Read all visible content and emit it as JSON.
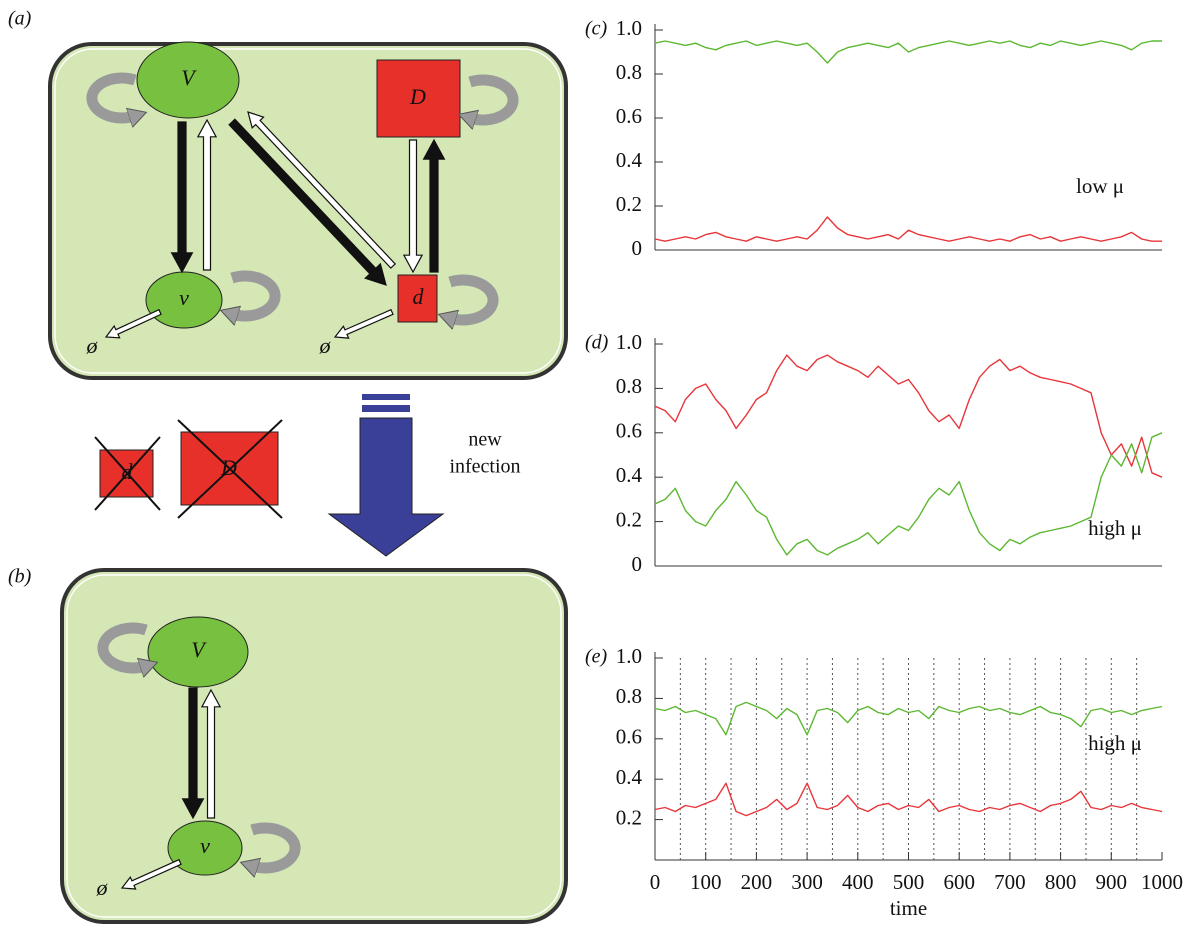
{
  "diagram": {
    "a": {
      "label": "(a)",
      "nodes": [
        "V",
        "D",
        "v",
        "d"
      ],
      "sinks": [
        "ø",
        "ø"
      ]
    },
    "removed": [
      "d",
      "D"
    ],
    "arrow_label": [
      "new",
      "infection"
    ],
    "b": {
      "label": "(b)",
      "nodes": [
        "V",
        "v"
      ],
      "sinks": [
        "ø"
      ]
    }
  },
  "chart_data": [
    {
      "type": "line",
      "label": "(c)",
      "annotation": "low μ",
      "x": [
        0,
        20,
        40,
        60,
        80,
        100,
        120,
        140,
        160,
        180,
        200,
        220,
        240,
        260,
        280,
        300,
        320,
        340,
        360,
        380,
        400,
        420,
        440,
        460,
        480,
        500,
        520,
        540,
        560,
        580,
        600,
        620,
        640,
        660,
        680,
        700,
        720,
        740,
        760,
        780,
        800,
        820,
        840,
        860,
        880,
        900,
        920,
        940,
        960,
        980,
        1000
      ],
      "xlim": [
        0,
        1000
      ],
      "ylim": [
        0,
        1
      ],
      "yticks": [
        0,
        0.2,
        0.4,
        0.6,
        0.8,
        {
          "value": 1,
          "label": "1.0"
        }
      ],
      "series": [
        {
          "color": "#5cb832",
          "values": [
            0.94,
            0.95,
            0.94,
            0.93,
            0.94,
            0.92,
            0.91,
            0.93,
            0.94,
            0.95,
            0.93,
            0.94,
            0.95,
            0.94,
            0.93,
            0.94,
            0.9,
            0.85,
            0.9,
            0.92,
            0.93,
            0.94,
            0.93,
            0.92,
            0.94,
            0.9,
            0.92,
            0.93,
            0.94,
            0.95,
            0.94,
            0.93,
            0.94,
            0.95,
            0.94,
            0.95,
            0.93,
            0.92,
            0.94,
            0.93,
            0.95,
            0.94,
            0.93,
            0.94,
            0.95,
            0.94,
            0.93,
            0.91,
            0.94,
            0.95,
            0.95
          ]
        },
        {
          "color": "#e8353a",
          "values": [
            0.05,
            0.04,
            0.05,
            0.06,
            0.05,
            0.07,
            0.08,
            0.06,
            0.05,
            0.04,
            0.06,
            0.05,
            0.04,
            0.05,
            0.06,
            0.05,
            0.09,
            0.15,
            0.1,
            0.07,
            0.06,
            0.05,
            0.06,
            0.07,
            0.05,
            0.09,
            0.07,
            0.06,
            0.05,
            0.04,
            0.05,
            0.06,
            0.05,
            0.04,
            0.05,
            0.04,
            0.06,
            0.07,
            0.05,
            0.06,
            0.04,
            0.05,
            0.06,
            0.05,
            0.04,
            0.05,
            0.06,
            0.08,
            0.05,
            0.04,
            0.04
          ]
        }
      ]
    },
    {
      "type": "line",
      "label": "(d)",
      "annotation": "high μ",
      "x": [
        0,
        20,
        40,
        60,
        80,
        100,
        120,
        140,
        160,
        180,
        200,
        220,
        240,
        260,
        280,
        300,
        320,
        340,
        360,
        380,
        400,
        420,
        440,
        460,
        480,
        500,
        520,
        540,
        560,
        580,
        600,
        620,
        640,
        660,
        680,
        700,
        720,
        740,
        760,
        780,
        800,
        820,
        840,
        860,
        880,
        900,
        920,
        940,
        960,
        980,
        1000
      ],
      "xlim": [
        0,
        1000
      ],
      "ylim": [
        0,
        1
      ],
      "yticks": [
        0,
        0.2,
        0.4,
        0.6,
        0.8,
        {
          "value": 1,
          "label": "1.0"
        }
      ],
      "series": [
        {
          "color": "#e8353a",
          "values": [
            0.72,
            0.7,
            0.65,
            0.75,
            0.8,
            0.82,
            0.75,
            0.7,
            0.62,
            0.68,
            0.75,
            0.78,
            0.88,
            0.95,
            0.9,
            0.88,
            0.93,
            0.95,
            0.92,
            0.9,
            0.88,
            0.85,
            0.9,
            0.86,
            0.82,
            0.84,
            0.78,
            0.7,
            0.65,
            0.68,
            0.62,
            0.75,
            0.85,
            0.9,
            0.93,
            0.88,
            0.9,
            0.87,
            0.85,
            0.84,
            0.83,
            0.82,
            0.8,
            0.78,
            0.6,
            0.5,
            0.55,
            0.45,
            0.58,
            0.42,
            0.4
          ]
        },
        {
          "color": "#5cb832",
          "values": [
            0.28,
            0.3,
            0.35,
            0.25,
            0.2,
            0.18,
            0.25,
            0.3,
            0.38,
            0.32,
            0.25,
            0.22,
            0.12,
            0.05,
            0.1,
            0.12,
            0.07,
            0.05,
            0.08,
            0.1,
            0.12,
            0.15,
            0.1,
            0.14,
            0.18,
            0.16,
            0.22,
            0.3,
            0.35,
            0.32,
            0.38,
            0.25,
            0.15,
            0.1,
            0.07,
            0.12,
            0.1,
            0.13,
            0.15,
            0.16,
            0.17,
            0.18,
            0.2,
            0.22,
            0.4,
            0.5,
            0.45,
            0.55,
            0.42,
            0.58,
            0.6
          ]
        }
      ]
    },
    {
      "type": "line",
      "label": "(e)",
      "annotation": "high μ",
      "xlabel": "time",
      "x": [
        0,
        20,
        40,
        60,
        80,
        100,
        120,
        140,
        160,
        180,
        200,
        220,
        240,
        260,
        280,
        300,
        320,
        340,
        360,
        380,
        400,
        420,
        440,
        460,
        480,
        500,
        520,
        540,
        560,
        580,
        600,
        620,
        640,
        660,
        680,
        700,
        720,
        740,
        760,
        780,
        800,
        820,
        840,
        860,
        880,
        900,
        920,
        940,
        960,
        980,
        1000
      ],
      "xlim": [
        0,
        1000
      ],
      "ylim": [
        0,
        1
      ],
      "xticks": [
        0,
        100,
        200,
        300,
        400,
        500,
        600,
        700,
        800,
        900,
        1000
      ],
      "yticks": [
        0.2,
        0.4,
        0.6,
        0.8,
        {
          "value": 1,
          "label": "1.0"
        }
      ],
      "vlines": [
        50,
        100,
        150,
        200,
        250,
        300,
        350,
        400,
        450,
        500,
        550,
        600,
        650,
        700,
        750,
        800,
        850,
        900,
        950
      ],
      "series": [
        {
          "color": "#5cb832",
          "values": [
            0.75,
            0.74,
            0.76,
            0.73,
            0.74,
            0.72,
            0.7,
            0.62,
            0.76,
            0.78,
            0.76,
            0.74,
            0.7,
            0.75,
            0.72,
            0.62,
            0.74,
            0.75,
            0.73,
            0.68,
            0.74,
            0.76,
            0.73,
            0.72,
            0.75,
            0.73,
            0.74,
            0.7,
            0.76,
            0.74,
            0.73,
            0.75,
            0.76,
            0.74,
            0.75,
            0.73,
            0.72,
            0.74,
            0.76,
            0.73,
            0.72,
            0.7,
            0.66,
            0.74,
            0.75,
            0.73,
            0.74,
            0.72,
            0.74,
            0.75,
            0.76
          ]
        },
        {
          "color": "#e8353a",
          "values": [
            0.25,
            0.26,
            0.24,
            0.27,
            0.26,
            0.28,
            0.3,
            0.38,
            0.24,
            0.22,
            0.24,
            0.26,
            0.3,
            0.25,
            0.28,
            0.38,
            0.26,
            0.25,
            0.27,
            0.32,
            0.26,
            0.24,
            0.27,
            0.28,
            0.25,
            0.27,
            0.26,
            0.3,
            0.24,
            0.26,
            0.27,
            0.25,
            0.24,
            0.26,
            0.25,
            0.27,
            0.28,
            0.26,
            0.24,
            0.27,
            0.28,
            0.3,
            0.34,
            0.26,
            0.25,
            0.27,
            0.26,
            0.28,
            0.26,
            0.25,
            0.24
          ]
        }
      ]
    }
  ]
}
